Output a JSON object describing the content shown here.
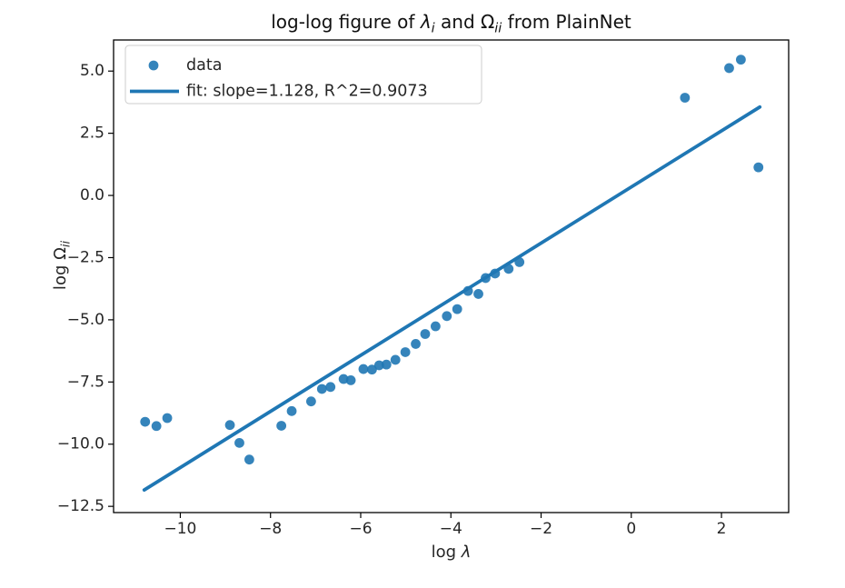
{
  "chart_data": {
    "type": "scatter",
    "title": "log-log figure of λ_i and Ω_ii from PlainNet",
    "title_parts": [
      {
        "t": "log-log figure of "
      },
      {
        "t": "λ",
        "italic": true
      },
      {
        "t": "i",
        "sub": true
      },
      {
        "t": " and "
      },
      {
        "t": "Ω"
      },
      {
        "t": "ii",
        "sub": true
      },
      {
        "t": " from PlainNet"
      }
    ],
    "xlabel": "log λ",
    "xlabel_parts": [
      {
        "t": "log "
      },
      {
        "t": "λ",
        "italic": true
      }
    ],
    "ylabel": "log Ω_ii",
    "ylabel_parts": [
      {
        "t": "log Ω"
      },
      {
        "t": "ii",
        "sub": true
      }
    ],
    "xlim": [
      -11.48,
      3.49
    ],
    "ylim": [
      -12.75,
      6.25
    ],
    "grid": false,
    "xticks": [
      {
        "v": -10,
        "label": "−10"
      },
      {
        "v": -8,
        "label": "−8"
      },
      {
        "v": -6,
        "label": "−6"
      },
      {
        "v": -4,
        "label": "−4"
      },
      {
        "v": -2,
        "label": "−2"
      },
      {
        "v": 0,
        "label": "0"
      },
      {
        "v": 2,
        "label": "2"
      }
    ],
    "yticks": [
      {
        "v": 5.0,
        "label": "5.0"
      },
      {
        "v": 2.5,
        "label": "2.5"
      },
      {
        "v": 0.0,
        "label": "0.0"
      },
      {
        "v": -2.5,
        "label": "−2.5"
      },
      {
        "v": -5.0,
        "label": "−5.0"
      },
      {
        "v": -7.5,
        "label": "−7.5"
      },
      {
        "v": -10.0,
        "label": "−10.0"
      },
      {
        "v": -12.5,
        "label": "−12.5"
      }
    ],
    "series": [
      {
        "name": "data",
        "type": "scatter",
        "points": [
          [
            -10.78,
            -9.1
          ],
          [
            -10.53,
            -9.27
          ],
          [
            -10.29,
            -8.95
          ],
          [
            -8.9,
            -9.23
          ],
          [
            -8.69,
            -9.95
          ],
          [
            -8.47,
            -10.62
          ],
          [
            -7.76,
            -9.26
          ],
          [
            -7.53,
            -8.67
          ],
          [
            -7.1,
            -8.28
          ],
          [
            -6.86,
            -7.78
          ],
          [
            -6.67,
            -7.7
          ],
          [
            -6.38,
            -7.38
          ],
          [
            -6.22,
            -7.43
          ],
          [
            -5.94,
            -6.98
          ],
          [
            -5.75,
            -7.0
          ],
          [
            -5.59,
            -6.83
          ],
          [
            -5.43,
            -6.8
          ],
          [
            -5.23,
            -6.61
          ],
          [
            -5.01,
            -6.3
          ],
          [
            -4.78,
            -5.97
          ],
          [
            -4.57,
            -5.57
          ],
          [
            -4.34,
            -5.26
          ],
          [
            -4.09,
            -4.85
          ],
          [
            -3.86,
            -4.57
          ],
          [
            -3.62,
            -3.84
          ],
          [
            -3.39,
            -3.96
          ],
          [
            -3.23,
            -3.32
          ],
          [
            -3.02,
            -3.14
          ],
          [
            -2.72,
            -2.95
          ],
          [
            -2.48,
            -2.68
          ],
          [
            1.19,
            3.93
          ],
          [
            2.17,
            5.12
          ],
          [
            2.43,
            5.46
          ],
          [
            2.82,
            1.13
          ]
        ]
      },
      {
        "name": "fit",
        "type": "line",
        "slope": 1.128,
        "intercept": 0.34,
        "r_squared": 0.9073,
        "x_range": [
          -10.8,
          2.85
        ]
      }
    ],
    "legend": {
      "position": "upper left",
      "entries": [
        {
          "handle": "marker",
          "label": "data"
        },
        {
          "handle": "line",
          "label": "fit: slope=1.128, R^2=0.9073"
        }
      ]
    },
    "colors": {
      "accent": "#1f77b4",
      "spine": "#000000",
      "text": "#262626",
      "legend_border": "#cccccc",
      "background": "#ffffff"
    }
  }
}
